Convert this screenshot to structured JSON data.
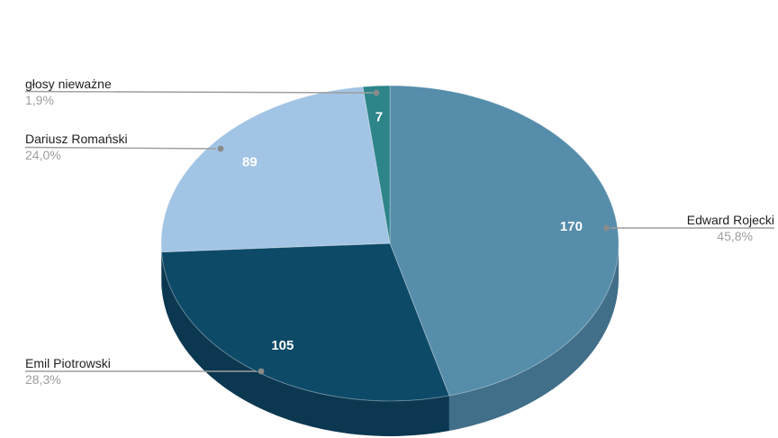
{
  "chart_data": {
    "type": "pie",
    "is_3d": true,
    "title": "",
    "legend_position": "outside-callouts",
    "background_color": "#ffffff",
    "leader_line_color": "#9e9e9e",
    "leader_dot_color": "#8a8a8a",
    "label_text_color": "#212121",
    "percent_text_color": "#9e9e9e",
    "value_label_color": "#ffffff",
    "start_angle_deg": 0,
    "direction": "clockwise",
    "slices": [
      {
        "label": "Edward Rojecki",
        "value": 170,
        "percent": "45,8%",
        "color": "#568dab",
        "side_color": "#416e88"
      },
      {
        "label": "Emil Piotrowski",
        "value": 105,
        "percent": "28,3%",
        "color": "#0d4a68",
        "side_color": "#0b3750"
      },
      {
        "label": "Dariusz Romański",
        "value": 89,
        "percent": "24,0%",
        "color": "#a2c4e5",
        "side_color": "#7e9ab5"
      },
      {
        "label": "głosy nieważne",
        "value": 7,
        "percent": "1,9%",
        "color": "#2d858a",
        "side_color": "#1f5d61"
      }
    ]
  }
}
